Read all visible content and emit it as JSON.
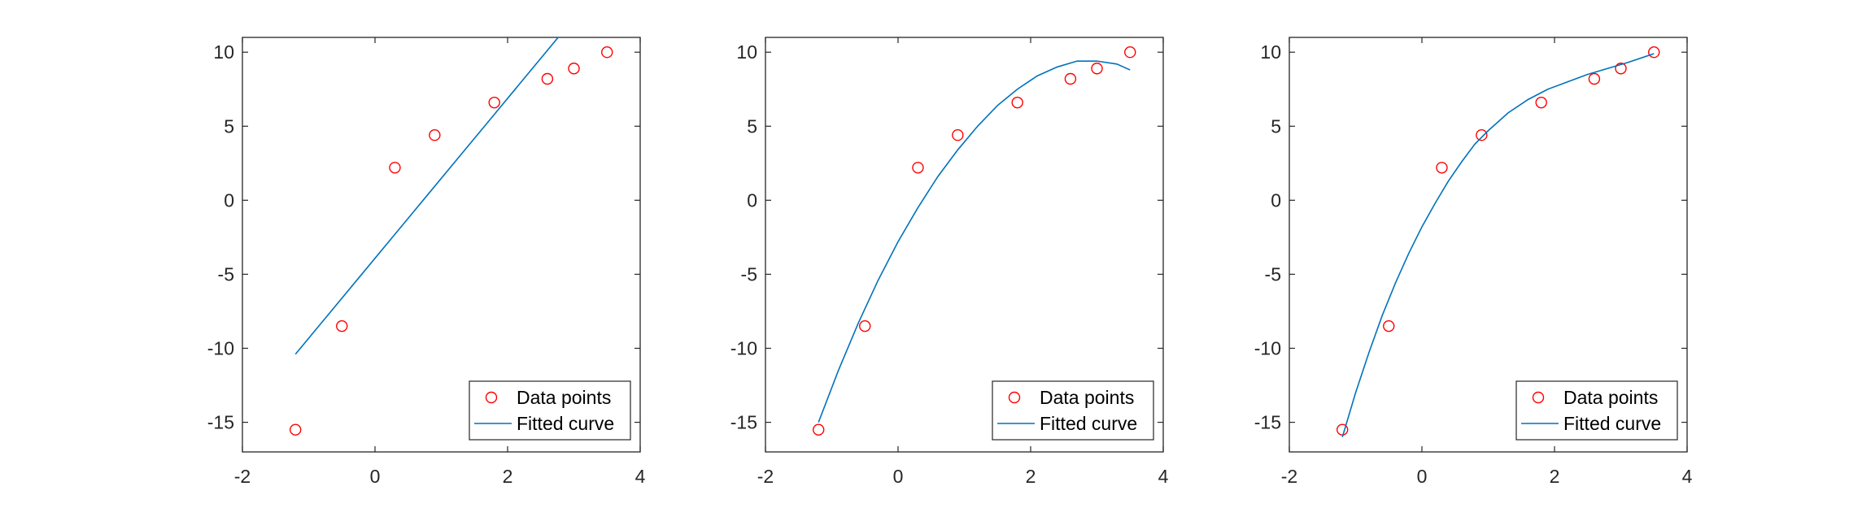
{
  "figure": {
    "background": "#ffffff"
  },
  "style": {
    "axis_color": "#262626",
    "marker_color": "#ff0000",
    "line_color": "#0072bd",
    "legend_border": "#262626"
  },
  "chart_data": [
    {
      "type": "scatter",
      "title": "",
      "xlabel": "",
      "ylabel": "",
      "xlim": [
        -2,
        4
      ],
      "ylim": [
        -17,
        11
      ],
      "xticks": [
        -2,
        0,
        2,
        4
      ],
      "yticks": [
        -15,
        -10,
        -5,
        0,
        5,
        10
      ],
      "grid": false,
      "legend_position": "bottom-right",
      "legend": [
        "Data points",
        "Fitted curve"
      ],
      "series": [
        {
          "name": "Data points",
          "kind": "markers",
          "marker": "circle-open",
          "x": [
            -1.2,
            -0.5,
            0.3,
            0.9,
            1.8,
            2.6,
            3.0,
            3.5
          ],
          "y": [
            -15.5,
            -8.5,
            2.2,
            4.4,
            6.6,
            8.2,
            8.9,
            10.0
          ]
        },
        {
          "name": "Fitted curve",
          "kind": "line",
          "x": [
            -1.2,
            -0.7,
            -0.2,
            0.3,
            0.8,
            1.3,
            1.8,
            2.3,
            2.8,
            3.05
          ],
          "y": [
            -10.4,
            -7.7,
            -5.0,
            -2.3,
            0.4,
            3.1,
            5.8,
            8.5,
            11.2,
            12.55
          ]
        }
      ]
    },
    {
      "type": "scatter",
      "title": "",
      "xlabel": "",
      "ylabel": "",
      "xlim": [
        -2,
        4
      ],
      "ylim": [
        -17,
        11
      ],
      "xticks": [
        -2,
        0,
        2,
        4
      ],
      "yticks": [
        -15,
        -10,
        -5,
        0,
        5,
        10
      ],
      "grid": false,
      "legend_position": "bottom-right",
      "legend": [
        "Data points",
        "Fitted curve"
      ],
      "series": [
        {
          "name": "Data points",
          "kind": "markers",
          "marker": "circle-open",
          "x": [
            -1.2,
            -0.5,
            0.3,
            0.9,
            1.8,
            2.6,
            3.0,
            3.5
          ],
          "y": [
            -15.5,
            -8.5,
            2.2,
            4.4,
            6.6,
            8.2,
            8.9,
            10.0
          ]
        },
        {
          "name": "Fitted curve",
          "kind": "line",
          "x": [
            -1.2,
            -0.9,
            -0.6,
            -0.3,
            0.0,
            0.3,
            0.6,
            0.9,
            1.2,
            1.5,
            1.8,
            2.1,
            2.4,
            2.7,
            3.0,
            3.3,
            3.5
          ],
          "y": [
            -15.0,
            -11.5,
            -8.3,
            -5.4,
            -2.8,
            -0.5,
            1.6,
            3.4,
            5.0,
            6.4,
            7.5,
            8.4,
            9.0,
            9.4,
            9.4,
            9.2,
            8.8
          ]
        }
      ]
    },
    {
      "type": "scatter",
      "title": "",
      "xlabel": "",
      "ylabel": "",
      "xlim": [
        -2,
        4
      ],
      "ylim": [
        -17,
        11
      ],
      "xticks": [
        -2,
        0,
        2,
        4
      ],
      "yticks": [
        -15,
        -10,
        -5,
        0,
        5,
        10
      ],
      "grid": false,
      "legend_position": "bottom-right",
      "legend": [
        "Data points",
        "Fitted curve"
      ],
      "series": [
        {
          "name": "Data points",
          "kind": "markers",
          "marker": "circle-open",
          "x": [
            -1.2,
            -0.5,
            0.3,
            0.9,
            1.8,
            2.6,
            3.0,
            3.5
          ],
          "y": [
            -15.5,
            -8.5,
            2.2,
            4.4,
            6.6,
            8.2,
            8.9,
            10.0
          ]
        },
        {
          "name": "Fitted curve",
          "kind": "line",
          "x": [
            -1.2,
            -1.0,
            -0.8,
            -0.6,
            -0.4,
            -0.2,
            0.0,
            0.2,
            0.4,
            0.6,
            0.8,
            1.0,
            1.3,
            1.6,
            1.9,
            2.2,
            2.5,
            2.8,
            3.1,
            3.5
          ],
          "y": [
            -16.0,
            -13.0,
            -10.3,
            -7.8,
            -5.6,
            -3.6,
            -1.8,
            -0.2,
            1.3,
            2.6,
            3.8,
            4.7,
            5.9,
            6.8,
            7.5,
            8.0,
            8.5,
            8.9,
            9.3,
            9.9
          ]
        }
      ]
    }
  ]
}
